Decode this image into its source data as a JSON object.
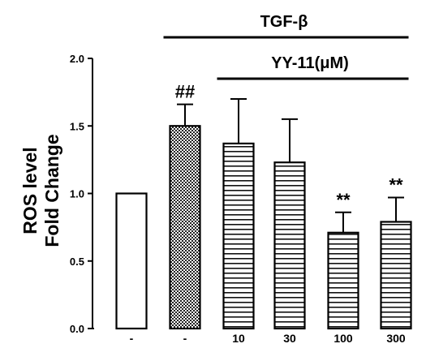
{
  "chart_data": {
    "type": "bar",
    "categories": [
      "-",
      "-",
      "10",
      "30",
      "100",
      "300"
    ],
    "values": [
      1.0,
      1.5,
      1.37,
      1.23,
      0.71,
      0.79
    ],
    "errors": [
      0,
      0.16,
      0.33,
      0.32,
      0.15,
      0.18
    ],
    "fills": [
      "white",
      "crosshatch",
      "horizontal-lines",
      "horizontal-lines",
      "horizontal-lines",
      "horizontal-lines"
    ],
    "annotations": [
      "",
      "##",
      "",
      "",
      "**",
      "**"
    ],
    "ylabel_line1": "ROS level",
    "ylabel_line2": "Fold Change",
    "yticks": [
      "0.0",
      "0.5",
      "1.0",
      "1.5",
      "2.0"
    ],
    "ylim": [
      0,
      2.0
    ],
    "group_labels": [
      {
        "label": "TGF-β",
        "from": 1,
        "to": 5
      },
      {
        "label": "YY-11(μM)",
        "from": 2,
        "to": 5
      }
    ],
    "grid": false
  }
}
